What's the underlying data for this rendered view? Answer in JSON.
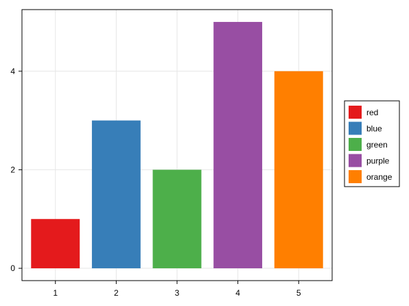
{
  "chart_data": {
    "type": "bar",
    "categories": [
      "1",
      "2",
      "3",
      "4",
      "5"
    ],
    "x": [
      1,
      2,
      3,
      4,
      5
    ],
    "values": [
      1,
      3,
      2,
      5,
      4
    ],
    "bar_colors": [
      "#e41a1c",
      "#377eb8",
      "#4daf4a",
      "#984ea3",
      "#ff7f00"
    ],
    "title": "",
    "xlabel": "",
    "ylabel": "",
    "xlim": [
      0.45,
      5.55
    ],
    "ylim": [
      -0.25,
      5.25
    ],
    "xticks": [
      1,
      2,
      3,
      4,
      5
    ],
    "yticks": [
      0,
      2,
      4
    ],
    "grid": true,
    "legend_position": "right",
    "legend": [
      {
        "label": "red",
        "color": "#e41a1c"
      },
      {
        "label": "blue",
        "color": "#377eb8"
      },
      {
        "label": "green",
        "color": "#4daf4a"
      },
      {
        "label": "purple",
        "color": "#984ea3"
      },
      {
        "label": "orange",
        "color": "#ff7f00"
      }
    ]
  }
}
